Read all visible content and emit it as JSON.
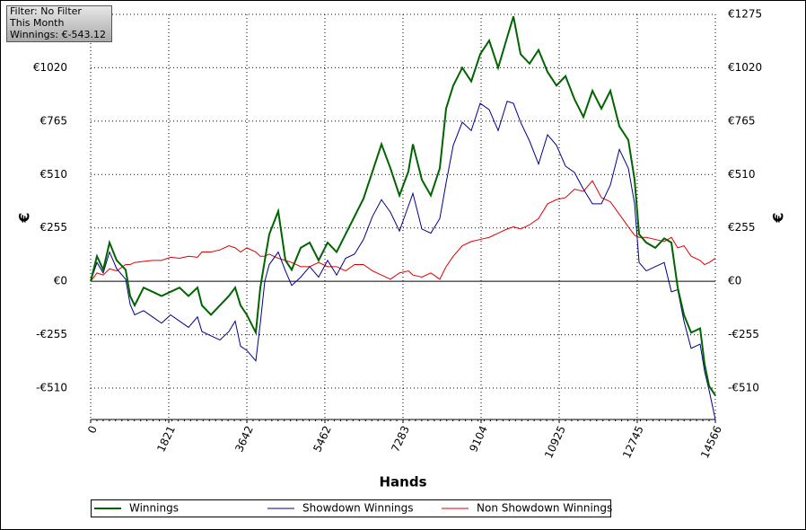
{
  "info": {
    "filter": "Filter: No Filter",
    "period": "This Month",
    "winnings": "Winnings: €-543.12"
  },
  "chart_data": {
    "type": "line",
    "xlabel": "Hands",
    "ylabel": "€",
    "y2label": "€",
    "x": [
      0,
      147,
      293,
      440,
      607,
      816,
      921,
      1026,
      1235,
      1444,
      1653,
      1863,
      2072,
      2281,
      2491,
      2595,
      2805,
      3014,
      3223,
      3370,
      3495,
      3642,
      3851,
      3956,
      4060,
      4165,
      4374,
      4542,
      4688,
      4898,
      5107,
      5316,
      5525,
      5735,
      5944,
      6153,
      6362,
      6572,
      6781,
      6990,
      7200,
      7409,
      7514,
      7723,
      7932,
      8141,
      8288,
      8455,
      8665,
      8874,
      9083,
      9293,
      9502,
      9711,
      9858,
      10025,
      10234,
      10444,
      10653,
      10862,
      11072,
      11281,
      11490,
      11700,
      11909,
      12118,
      12328,
      12537,
      12683,
      12788,
      12955,
      13165,
      13374,
      13541,
      13688,
      13834,
      14001,
      14211,
      14315,
      14420,
      14566
    ],
    "series": [
      {
        "name": "Winnings",
        "color": "#006400",
        "values": [
          0,
          120,
          55,
          185,
          100,
          55,
          -70,
          -115,
          -30,
          -50,
          -70,
          -50,
          -30,
          -70,
          -30,
          -115,
          -160,
          -115,
          -70,
          -30,
          -115,
          -160,
          -245,
          -30,
          100,
          225,
          335,
          100,
          55,
          160,
          185,
          100,
          185,
          140,
          225,
          310,
          395,
          525,
          655,
          540,
          410,
          525,
          655,
          485,
          410,
          540,
          825,
          935,
          1020,
          955,
          1085,
          1150,
          1020,
          1165,
          1265,
          1085,
          1040,
          1105,
          1000,
          935,
          980,
          870,
          785,
          910,
          825,
          910,
          740,
          675,
          485,
          225,
          185,
          160,
          205,
          185,
          -30,
          -160,
          -245,
          -225,
          -395,
          -500,
          -545
        ]
      },
      {
        "name": "Showdown Winnings",
        "color": "#00008b",
        "values": [
          0,
          90,
          40,
          140,
          60,
          10,
          -110,
          -160,
          -140,
          -170,
          -200,
          -160,
          -190,
          -220,
          -170,
          -240,
          -260,
          -280,
          -240,
          -190,
          -310,
          -330,
          -380,
          -200,
          0,
          80,
          140,
          50,
          -20,
          20,
          70,
          20,
          100,
          30,
          110,
          130,
          200,
          310,
          390,
          330,
          240,
          360,
          420,
          250,
          230,
          300,
          470,
          650,
          760,
          720,
          850,
          820,
          720,
          860,
          850,
          760,
          670,
          560,
          700,
          650,
          550,
          520,
          440,
          370,
          370,
          460,
          630,
          540,
          370,
          90,
          50,
          70,
          90,
          -50,
          -40,
          -190,
          -320,
          -300,
          -430,
          -520,
          -660
        ]
      },
      {
        "name": "Non Showdown Winnings",
        "color": "#dd0000",
        "values": [
          0,
          40,
          30,
          60,
          50,
          80,
          80,
          90,
          95,
          100,
          100,
          115,
          110,
          120,
          115,
          140,
          140,
          150,
          170,
          160,
          140,
          160,
          140,
          120,
          120,
          130,
          110,
          100,
          90,
          70,
          70,
          90,
          70,
          70,
          50,
          80,
          80,
          50,
          30,
          10,
          40,
          50,
          30,
          20,
          40,
          10,
          70,
          120,
          170,
          190,
          200,
          210,
          230,
          250,
          260,
          250,
          270,
          300,
          370,
          390,
          400,
          440,
          430,
          480,
          400,
          380,
          320,
          260,
          220,
          210,
          210,
          200,
          190,
          210,
          160,
          170,
          120,
          100,
          80,
          90,
          110
        ]
      }
    ],
    "xlim": [
      0,
      14566
    ],
    "xticks": [
      0,
      1821,
      3642,
      5462,
      7283,
      9104,
      10925,
      12745,
      14566
    ],
    "ylim": [
      -660,
      1275
    ],
    "yticks": [
      {
        "value": -510,
        "label": "-€510"
      },
      {
        "value": -255,
        "label": "-€255"
      },
      {
        "value": 0,
        "label": "€0"
      },
      {
        "value": 255,
        "label": "€255"
      },
      {
        "value": 510,
        "label": "€510"
      },
      {
        "value": 765,
        "label": "€765"
      },
      {
        "value": 1020,
        "label": "€1020"
      },
      {
        "value": 1275,
        "label": "€1275"
      }
    ],
    "grid": true
  }
}
